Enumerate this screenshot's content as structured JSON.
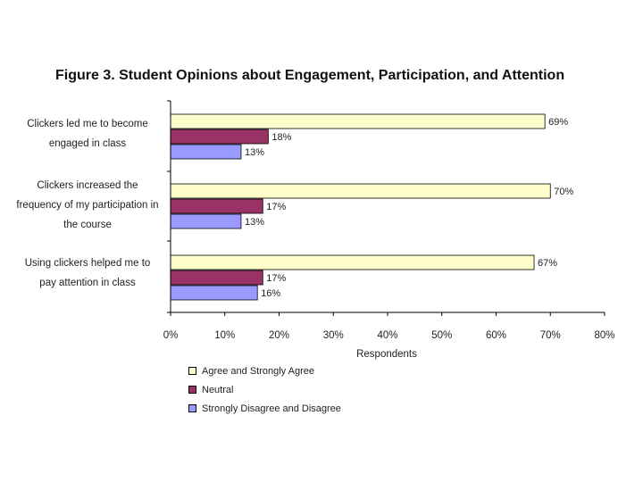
{
  "chart_data": {
    "type": "bar",
    "orientation": "horizontal",
    "title": "Figure 3. Student Opinions about Engagement, Participation, and Attention",
    "categories": [
      {
        "lines": [
          "Clickers led me to become",
          "engaged in class"
        ]
      },
      {
        "lines": [
          "Clickers increased the",
          "frequency of my participation in",
          "the course"
        ]
      },
      {
        "lines": [
          "Using clickers helped me to",
          "pay attention in class"
        ]
      }
    ],
    "series": [
      {
        "name": "Agree and Strongly Agree",
        "color": "#ffffcc",
        "values": [
          69,
          70,
          67
        ],
        "labels": [
          "69%",
          "70%",
          "67%"
        ]
      },
      {
        "name": "Neutral",
        "color": "#993366",
        "values": [
          18,
          17,
          17
        ],
        "labels": [
          "18%",
          "17%",
          "17%"
        ]
      },
      {
        "name": "Strongly Disagree and Disagree",
        "color": "#9999ff",
        "values": [
          13,
          13,
          16
        ],
        "labels": [
          "13%",
          "13%",
          "16%"
        ]
      }
    ],
    "xlabel": "Respondents",
    "xlim": [
      0,
      80
    ],
    "xticks": [
      "0%",
      "10%",
      "20%",
      "30%",
      "40%",
      "50%",
      "60%",
      "70%",
      "80%"
    ],
    "legend_position": "bottom-left"
  }
}
